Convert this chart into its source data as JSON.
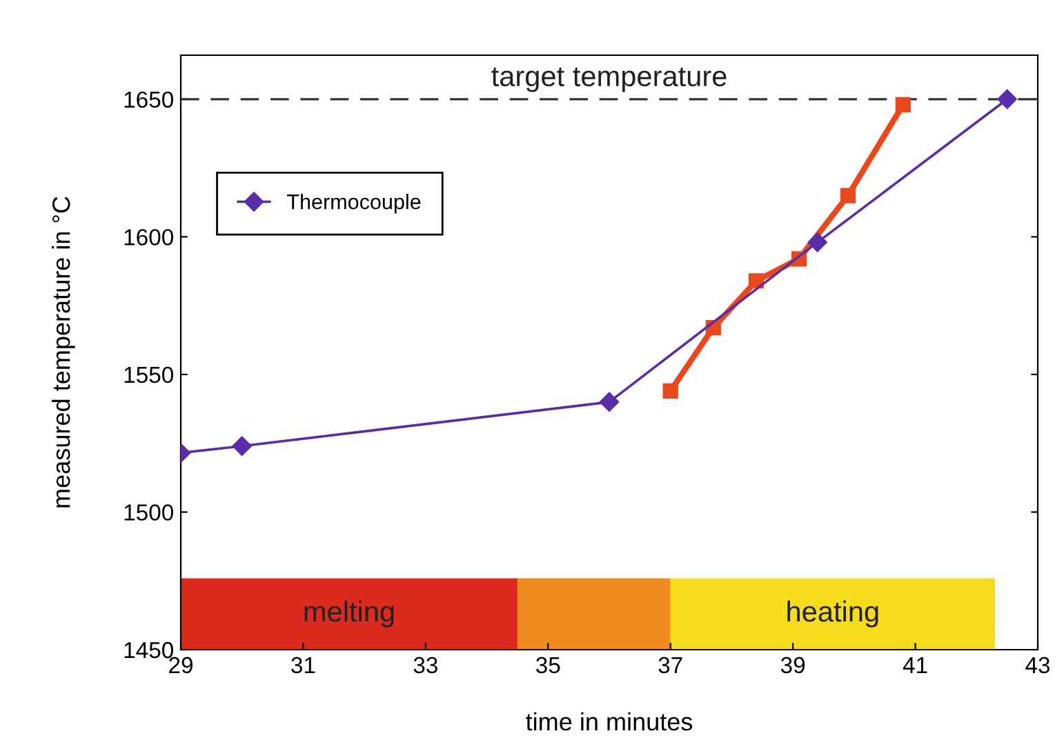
{
  "chart_data": {
    "type": "line",
    "xlabel": "time in minutes",
    "ylabel": "measured temperature in °C",
    "xlim": [
      29,
      43
    ],
    "ylim": [
      1450,
      1666
    ],
    "xticks": [
      29,
      31,
      33,
      35,
      37,
      39,
      41,
      43
    ],
    "yticks": [
      1450,
      1500,
      1550,
      1600,
      1650
    ],
    "series": [
      {
        "color": "#e8481c",
        "marker": "square",
        "x": [
          37.0,
          37.7,
          38.4,
          39.1,
          39.9,
          40.8
        ],
        "values": [
          1544,
          1567,
          1584,
          1592,
          1615,
          1648
        ]
      },
      {
        "name": "Thermocouple",
        "color": "#5b2ca8",
        "marker": "diamond",
        "x": [
          29,
          30.0,
          36.0,
          39.4,
          42.5
        ],
        "values": [
          1521.5,
          1524,
          1540,
          1598,
          1650
        ]
      }
    ],
    "ref_lines": [
      {
        "axis": "y",
        "value": 1650,
        "label": "target temperature",
        "color": "#333333",
        "line_style": "dashed"
      }
    ],
    "bands": [
      {
        "axis": "x",
        "from": 29,
        "to": 34.5,
        "label": "melting",
        "color": "#dc2b1e"
      },
      {
        "axis": "x",
        "from": 34.5,
        "to": 37,
        "color": "#ef8a1c"
      },
      {
        "axis": "x",
        "from": 37,
        "to": 42.3,
        "label": "heating",
        "color": "#f5dc1c"
      }
    ],
    "legend": "top left",
    "grid": false
  }
}
